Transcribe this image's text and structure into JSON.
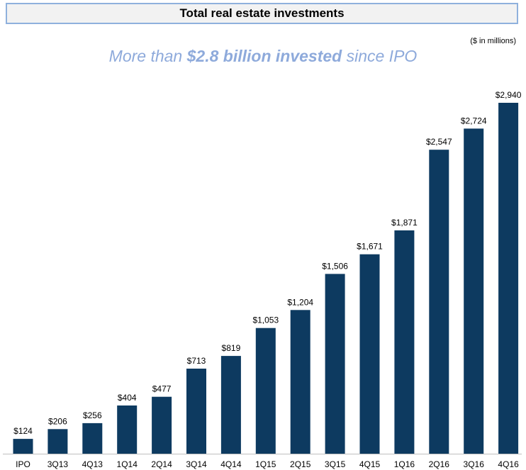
{
  "header": {
    "title": "Total real estate investments"
  },
  "units_note": "($ in millions)",
  "subtitle": {
    "prefix": "More than ",
    "emphasis": "$2.8 billion invested",
    "suffix": " since IPO"
  },
  "colors": {
    "bar": "#0d3a60",
    "subtitle": "#8eaadb",
    "header_border": "#8fb1dd",
    "header_bg": "#f2f2f2",
    "axis": "#bfbfbf"
  },
  "chart_data": {
    "type": "bar",
    "title": "Total real estate investments",
    "xlabel": "",
    "ylabel": "$ in millions",
    "ylim": [
      0,
      2940
    ],
    "grid": false,
    "categories": [
      "IPO",
      "3Q13",
      "4Q13",
      "1Q14",
      "2Q14",
      "3Q14",
      "4Q14",
      "1Q15",
      "2Q15",
      "3Q15",
      "4Q15",
      "1Q16",
      "2Q16",
      "3Q16",
      "4Q16"
    ],
    "values": [
      124,
      206,
      256,
      404,
      477,
      713,
      819,
      1053,
      1204,
      1506,
      1671,
      1871,
      2547,
      2724,
      2940
    ],
    "data_labels": [
      "$124",
      "$206",
      "$256",
      "$404",
      "$477",
      "$713",
      "$819",
      "$1,053",
      "$1,204",
      "$1,506",
      "$1,671",
      "$1,871",
      "$2,547",
      "$2,724",
      "$2,940"
    ]
  }
}
